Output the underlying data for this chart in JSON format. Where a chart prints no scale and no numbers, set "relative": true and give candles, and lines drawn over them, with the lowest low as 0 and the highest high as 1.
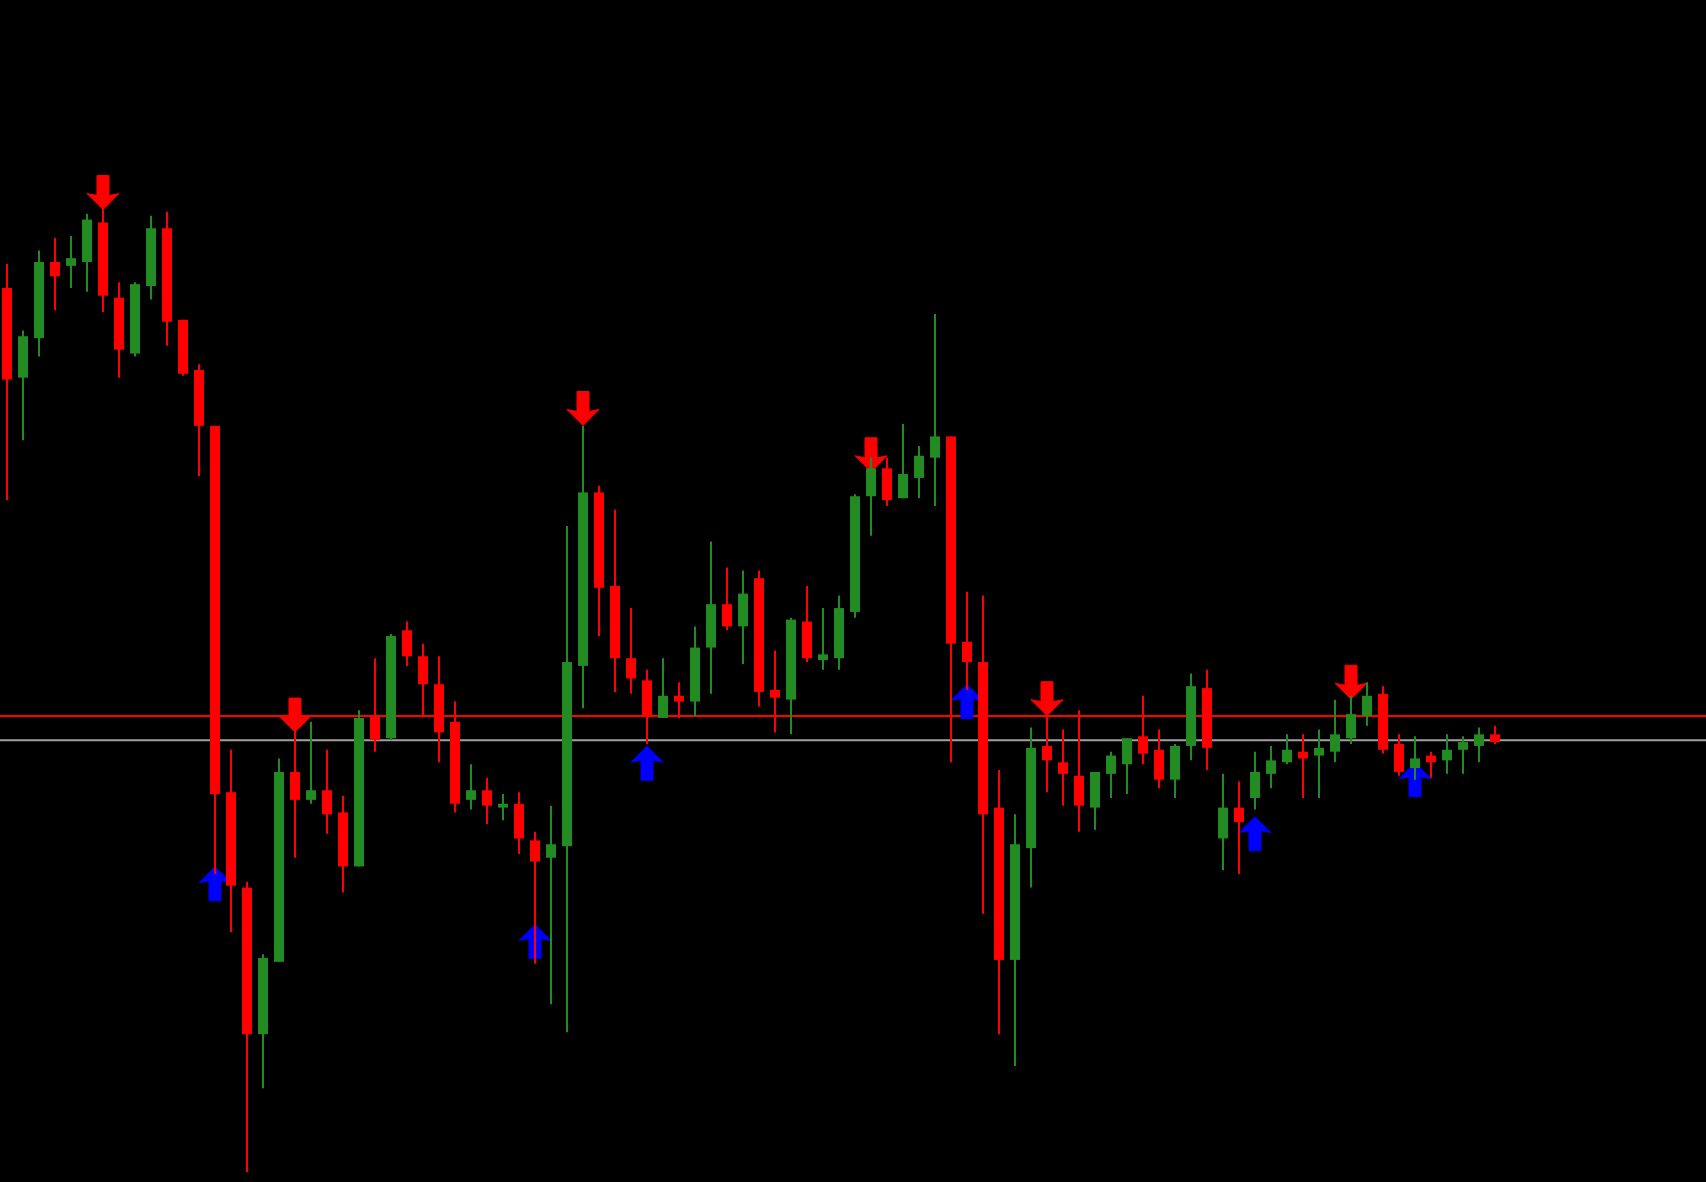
{
  "chart_data": {
    "type": "candlestick",
    "relative": true,
    "categories": [
      null,
      null,
      null,
      null,
      null,
      null,
      null,
      null,
      null,
      null,
      null,
      null,
      null,
      null,
      null,
      null,
      null,
      null,
      null,
      null,
      null,
      null,
      null,
      null,
      null,
      null,
      null,
      null,
      null,
      null,
      null,
      null,
      null,
      null,
      null,
      null,
      null,
      null,
      null,
      null,
      null,
      null,
      null,
      null,
      null,
      null,
      null,
      null,
      null,
      null,
      null,
      null,
      null,
      null,
      null,
      null,
      null,
      null,
      null,
      null,
      null,
      null,
      null,
      null,
      null,
      null,
      null,
      null,
      null,
      null,
      null,
      null,
      null,
      null,
      null,
      null,
      null,
      null,
      null,
      null,
      null,
      null,
      null,
      null,
      null,
      null,
      null,
      null,
      null,
      null,
      null,
      null,
      null,
      null
    ],
    "ohlc": [
      [
        0.917,
        0.942,
        0.697,
        0.822
      ],
      [
        0.824,
        0.873,
        0.759,
        0.867
      ],
      [
        0.865,
        0.956,
        0.846,
        0.944
      ],
      [
        0.944,
        0.969,
        0.894,
        0.929
      ],
      [
        0.94,
        0.971,
        0.917,
        0.948
      ],
      [
        0.944,
        0.994,
        0.913,
        0.988
      ],
      [
        0.985,
        1,
        0.892,
        0.909
      ],
      [
        0.907,
        0.923,
        0.824,
        0.853
      ],
      [
        0.849,
        0.923,
        0.846,
        0.921
      ],
      [
        0.919,
        0.992,
        0.905,
        0.979
      ],
      [
        0.979,
        0.996,
        0.857,
        0.882
      ],
      [
        0.884,
        0.884,
        0.826,
        0.828
      ],
      [
        0.832,
        0.838,
        0.722,
        0.774
      ],
      [
        0.774,
        0.774,
        0.309,
        0.392
      ],
      [
        0.394,
        0.438,
        0.249,
        0.297
      ],
      [
        0.295,
        0.301,
        0,
        0.143
      ],
      [
        0.143,
        0.226,
        0.087,
        0.222
      ],
      [
        0.218,
        0.429,
        0.218,
        0.415
      ],
      [
        0.415,
        0.475,
        0.326,
        0.386
      ],
      [
        0.386,
        0.467,
        0.382,
        0.396
      ],
      [
        0.396,
        0.438,
        0.351,
        0.371
      ],
      [
        0.373,
        0.39,
        0.29,
        0.317
      ],
      [
        0.317,
        0.479,
        0.317,
        0.471
      ],
      [
        0.473,
        0.533,
        0.436,
        0.448
      ],
      [
        0.45,
        0.558,
        0.448,
        0.556
      ],
      [
        0.562,
        0.571,
        0.525,
        0.535
      ],
      [
        0.535,
        0.548,
        0.473,
        0.506
      ],
      [
        0.506,
        0.535,
        0.425,
        0.456
      ],
      [
        0.467,
        0.488,
        0.373,
        0.382
      ],
      [
        0.386,
        0.423,
        0.376,
        0.396
      ],
      [
        0.396,
        0.409,
        0.361,
        0.38
      ],
      [
        0.378,
        0.392,
        0.365,
        0.382
      ],
      [
        0.382,
        0.394,
        0.33,
        0.346
      ],
      [
        0.344,
        0.353,
        0.216,
        0.322
      ],
      [
        0.326,
        0.38,
        0.174,
        0.34
      ],
      [
        0.338,
        0.67,
        0.145,
        0.529
      ],
      [
        0.525,
        0.774,
        0.481,
        0.705
      ],
      [
        0.705,
        0.712,
        0.556,
        0.606
      ],
      [
        0.608,
        0.687,
        0.498,
        0.533
      ],
      [
        0.533,
        0.585,
        0.496,
        0.512
      ],
      [
        0.51,
        0.521,
        0.444,
        0.473
      ],
      [
        0.471,
        0.533,
        0.471,
        0.494
      ],
      [
        0.494,
        0.508,
        0.471,
        0.488
      ],
      [
        0.488,
        0.566,
        0.473,
        0.544
      ],
      [
        0.544,
        0.654,
        0.496,
        0.589
      ],
      [
        0.589,
        0.627,
        0.562,
        0.566
      ],
      [
        0.566,
        0.624,
        0.527,
        0.6
      ],
      [
        0.616,
        0.624,
        0.483,
        0.498
      ],
      [
        0.5,
        0.541,
        0.456,
        0.492
      ],
      [
        0.49,
        0.575,
        0.454,
        0.573
      ],
      [
        0.571,
        0.608,
        0.529,
        0.533
      ],
      [
        0.531,
        0.585,
        0.521,
        0.537
      ],
      [
        0.533,
        0.598,
        0.521,
        0.585
      ],
      [
        0.581,
        0.703,
        0.575,
        0.701
      ],
      [
        0.701,
        0.741,
        0.66,
        0.73
      ],
      [
        0.73,
        0.741,
        0.691,
        0.697
      ],
      [
        0.699,
        0.776,
        0.699,
        0.724
      ],
      [
        0.72,
        0.753,
        0.699,
        0.743
      ],
      [
        0.741,
        0.89,
        0.691,
        0.763
      ],
      [
        0.763,
        0.763,
        0.425,
        0.548
      ],
      [
        0.55,
        0.602,
        0.5,
        0.529
      ],
      [
        0.529,
        0.598,
        0.268,
        0.371
      ],
      [
        0.378,
        0.417,
        0.143,
        0.22
      ],
      [
        0.22,
        0.371,
        0.11,
        0.34
      ],
      [
        0.336,
        0.461,
        0.295,
        0.44
      ],
      [
        0.442,
        0.475,
        0.394,
        0.427
      ],
      [
        0.425,
        0.459,
        0.38,
        0.413
      ],
      [
        0.411,
        0.479,
        0.353,
        0.38
      ],
      [
        0.378,
        0.415,
        0.355,
        0.415
      ],
      [
        0.413,
        0.436,
        0.388,
        0.432
      ],
      [
        0.423,
        0.45,
        0.392,
        0.45
      ],
      [
        0.452,
        0.494,
        0.423,
        0.434
      ],
      [
        0.438,
        0.459,
        0.398,
        0.407
      ],
      [
        0.407,
        0.444,
        0.388,
        0.442
      ],
      [
        0.442,
        0.517,
        0.427,
        0.504
      ],
      [
        0.502,
        0.521,
        0.417,
        0.44
      ],
      [
        0.346,
        0.413,
        0.313,
        0.378
      ],
      [
        0.378,
        0.405,
        0.309,
        0.363
      ],
      [
        0.388,
        0.436,
        0.376,
        0.415
      ],
      [
        0.413,
        0.442,
        0.398,
        0.427
      ],
      [
        0.425,
        0.454,
        0.423,
        0.438
      ],
      [
        0.436,
        0.454,
        0.388,
        0.429
      ],
      [
        0.432,
        0.459,
        0.388,
        0.44
      ],
      [
        0.436,
        0.49,
        0.425,
        0.454
      ],
      [
        0.45,
        0.494,
        0.444,
        0.475
      ],
      [
        0.473,
        0.508,
        0.463,
        0.494
      ],
      [
        0.496,
        0.504,
        0.434,
        0.438
      ],
      [
        0.444,
        0.454,
        0.411,
        0.415
      ],
      [
        0.419,
        0.452,
        0.407,
        0.429
      ],
      [
        0.432,
        0.436,
        0.409,
        0.425
      ],
      [
        0.427,
        0.454,
        0.413,
        0.438
      ],
      [
        0.438,
        0.452,
        0.413,
        0.446
      ],
      [
        0.442,
        0.461,
        0.425,
        0.454
      ],
      [
        0.454,
        0.463,
        0.444,
        0.446
      ]
    ],
    "colors": [
      "#ff0000",
      "#228b22",
      "#228b22",
      "#ff0000",
      "#228b22",
      "#228b22",
      "#ff0000",
      "#ff0000",
      "#228b22",
      "#228b22",
      "#ff0000",
      "#ff0000",
      "#ff0000",
      "#ff0000",
      "#ff0000",
      "#ff0000",
      "#228b22",
      "#228b22",
      "#ff0000",
      "#228b22",
      "#ff0000",
      "#ff0000",
      "#228b22",
      "#ff0000",
      "#228b22",
      "#ff0000",
      "#ff0000",
      "#ff0000",
      "#ff0000",
      "#228b22",
      "#ff0000",
      "#228b22",
      "#ff0000",
      "#ff0000",
      "#228b22",
      "#228b22",
      "#228b22",
      "#ff0000",
      "#ff0000",
      "#ff0000",
      "#ff0000",
      "#228b22",
      "#ff0000",
      "#228b22",
      "#228b22",
      "#ff0000",
      "#228b22",
      "#ff0000",
      "#ff0000",
      "#228b22",
      "#ff0000",
      "#228b22",
      "#228b22",
      "#228b22",
      "#228b22",
      "#ff0000",
      "#228b22",
      "#228b22",
      "#228b22",
      "#ff0000",
      "#ff0000",
      "#ff0000",
      "#ff0000",
      "#228b22",
      "#228b22",
      "#ff0000",
      "#ff0000",
      "#ff0000",
      "#228b22",
      "#228b22",
      "#228b22",
      "#ff0000",
      "#ff0000",
      "#228b22",
      "#228b22",
      "#ff0000",
      "#228b22",
      "#ff0000",
      "#228b22",
      "#228b22",
      "#228b22",
      "#ff0000",
      "#228b22",
      "#228b22",
      "#228b22",
      "#228b22",
      "#ff0000",
      "#ff0000",
      "#228b22",
      "#ff0000",
      "#228b22",
      "#228b22",
      "#228b22",
      "#ff0000"
    ],
    "series": [
      {
        "type": "scatter",
        "color": "#ff0000",
        "values": [
          null,
          null,
          null,
          null,
          null,
          null,
          1.016,
          null,
          null,
          null,
          null,
          null,
          null,
          null,
          null,
          null,
          null,
          null,
          0.474,
          null,
          null,
          null,
          null,
          null,
          null,
          null,
          null,
          null,
          null,
          null,
          null,
          null,
          null,
          null,
          null,
          null,
          0.792,
          null,
          null,
          null,
          null,
          null,
          null,
          null,
          null,
          null,
          null,
          null,
          null,
          null,
          null,
          null,
          null,
          null,
          0.744,
          null,
          null,
          null,
          null,
          null,
          null,
          null,
          null,
          null,
          null,
          0.491,
          null,
          null,
          null,
          null,
          null,
          null,
          null,
          null,
          null,
          null,
          null,
          null,
          null,
          null,
          null,
          null,
          null,
          null,
          0.508,
          null,
          null,
          null,
          null,
          null,
          null,
          null,
          null,
          null
        ]
      },
      {
        "type": "scatter",
        "color": "#0000ff",
        "values": [
          null,
          null,
          null,
          null,
          null,
          null,
          null,
          null,
          null,
          null,
          null,
          null,
          null,
          0.299,
          null,
          null,
          null,
          null,
          null,
          null,
          null,
          null,
          null,
          null,
          null,
          null,
          null,
          null,
          null,
          null,
          null,
          null,
          null,
          0.239,
          null,
          null,
          null,
          null,
          null,
          null,
          0.424,
          null,
          null,
          null,
          null,
          null,
          null,
          null,
          null,
          null,
          null,
          null,
          null,
          null,
          null,
          null,
          null,
          null,
          null,
          null,
          0.488,
          null,
          null,
          null,
          null,
          null,
          null,
          null,
          null,
          null,
          null,
          null,
          null,
          null,
          null,
          null,
          null,
          null,
          0.351,
          null,
          null,
          null,
          null,
          null,
          null,
          null,
          null,
          null,
          0.407,
          null,
          null,
          null,
          null,
          null
        ]
      }
    ],
    "ref_lines": [
      {
        "axis": "y",
        "value": 0.473,
        "color": "#ff0000"
      },
      {
        "axis": "y",
        "value": 0.448,
        "color": "#a0a0a0"
      }
    ]
  }
}
